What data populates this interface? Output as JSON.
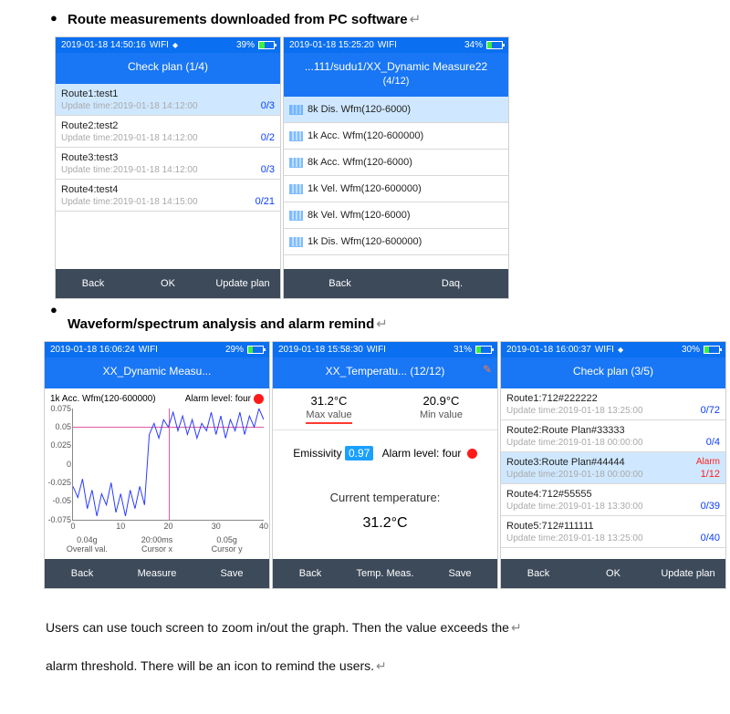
{
  "headings": {
    "h1": "Route measurements downloaded from PC software",
    "h2": "Waveform/spectrum analysis and alarm remind"
  },
  "bodytext": {
    "p1": "Users can use touch screen to zoom in/out the graph. Then the value exceeds the",
    "p2": "alarm threshold. There will be an icon to remind the users."
  },
  "phoneA": {
    "status": {
      "time": "2019-01-18 14:50:16",
      "wifi": "WIFI",
      "batt_pct": "39%",
      "batt_fill": 39
    },
    "title": "Check plan (1/4)",
    "items": [
      {
        "name": "Route1:test1",
        "upd": "Update time:2019-01-18 14:12:00",
        "cnt": "0/3",
        "sel": true
      },
      {
        "name": "Route2:test2",
        "upd": "Update time:2019-01-18 14:12:00",
        "cnt": "0/2"
      },
      {
        "name": "Route3:test3",
        "upd": "Update time:2019-01-18 14:12:00",
        "cnt": "0/3"
      },
      {
        "name": "Route4:test4",
        "upd": "Update time:2019-01-18 14:15:00",
        "cnt": "0/21"
      }
    ],
    "footer": [
      "Back",
      "OK",
      "Update plan"
    ]
  },
  "phoneB": {
    "status": {
      "time": "2019-01-18 15:25:20",
      "wifi": "WIFI",
      "batt_pct": "34%",
      "batt_fill": 34
    },
    "title_l1": "...111/sudu1/XX_Dynamic Measure22",
    "title_l2": "(4/12)",
    "items": [
      {
        "name": "8k Dis. Wfm(120-6000)",
        "sel": true
      },
      {
        "name": "1k Acc. Wfm(120-600000)"
      },
      {
        "name": "8k Acc. Wfm(120-6000)"
      },
      {
        "name": "1k Vel. Wfm(120-600000)"
      },
      {
        "name": "8k Vel. Wfm(120-6000)"
      },
      {
        "name": "1k Dis. Wfm(120-600000)"
      }
    ],
    "footer": [
      "Back",
      "Daq."
    ]
  },
  "phoneC": {
    "status": {
      "time": "2019-01-18 16:06:24",
      "wifi": "WIFI",
      "batt_pct": "29%",
      "batt_fill": 29
    },
    "title": "XX_Dynamic Measu...",
    "chart": {
      "type": "line",
      "series_label": "1k Acc. Wfm(120-600000)",
      "alarm_label": "Alarm level: four",
      "line_color": "#2a3cff",
      "cursor_color": "#e05aa0",
      "yticks": [
        0.075,
        0.05,
        0.025,
        0,
        -0.025,
        -0.05,
        -0.075
      ],
      "xticks": [
        0,
        10,
        20,
        30,
        40
      ],
      "cursor_x": 20,
      "cursor_y": 0.05,
      "overall": {
        "v": "0.04g",
        "l": "Overall val."
      },
      "cx": {
        "v": "20:00ms",
        "l": "Cursor x"
      },
      "cy": {
        "v": "0.05g",
        "l": "Cursor y"
      },
      "points": [
        [
          0,
          -0.03
        ],
        [
          1,
          -0.045
        ],
        [
          2,
          -0.02
        ],
        [
          3,
          -0.06
        ],
        [
          4,
          -0.035
        ],
        [
          5,
          -0.07
        ],
        [
          6,
          -0.04
        ],
        [
          7,
          -0.055
        ],
        [
          8,
          -0.025
        ],
        [
          9,
          -0.065
        ],
        [
          10,
          -0.04
        ],
        [
          11,
          -0.07
        ],
        [
          12,
          -0.035
        ],
        [
          13,
          -0.06
        ],
        [
          14,
          -0.03
        ],
        [
          15,
          -0.055
        ],
        [
          16,
          0.04
        ],
        [
          17,
          0.055
        ],
        [
          18,
          0.035
        ],
        [
          19,
          0.06
        ],
        [
          20,
          0.05
        ],
        [
          21,
          0.07
        ],
        [
          22,
          0.045
        ],
        [
          23,
          0.065
        ],
        [
          24,
          0.04
        ],
        [
          25,
          0.06
        ],
        [
          26,
          0.035
        ],
        [
          27,
          0.055
        ],
        [
          28,
          0.045
        ],
        [
          29,
          0.07
        ],
        [
          30,
          0.04
        ],
        [
          31,
          0.065
        ],
        [
          32,
          0.035
        ],
        [
          33,
          0.06
        ],
        [
          34,
          0.045
        ],
        [
          35,
          0.07
        ],
        [
          36,
          0.04
        ],
        [
          37,
          0.065
        ],
        [
          38,
          0.05
        ],
        [
          39,
          0.075
        ],
        [
          40,
          0.06
        ]
      ]
    },
    "footer": [
      "Back",
      "Measure",
      "Save"
    ]
  },
  "phoneD": {
    "status": {
      "time": "2019-01-18 15:58:30",
      "wifi": "WIFI",
      "batt_pct": "31%",
      "batt_fill": 31
    },
    "title": "XX_Temperatu... (12/12)",
    "edit_icon": "✎",
    "max": {
      "v": "31.2°C",
      "l": "Max value"
    },
    "min": {
      "v": "20.9°C",
      "l": "Min value"
    },
    "emiss_label": "Emissivity",
    "emiss_val": "0.97",
    "alarm_label": "Alarm level: four",
    "cur_label": "Current temperature:",
    "cur_val": "31.2°C",
    "footer": [
      "Back",
      "Temp. Meas.",
      "Save"
    ]
  },
  "phoneE": {
    "status": {
      "time": "2019-01-18 16:00:37",
      "wifi": "WIFI",
      "batt_pct": "30%",
      "batt_fill": 30
    },
    "title": "Check plan (3/5)",
    "items": [
      {
        "name": "Route1:712#222222",
        "upd": "Update time:2019-01-18 13:25:00",
        "cnt": "0/72"
      },
      {
        "name": "Route2:Route Plan#33333",
        "upd": "Update time:2019-01-18 00:00:00",
        "cnt": "0/4"
      },
      {
        "name": "Route3:Route Plan#44444",
        "upd": "Update time:2019-01-18 00:00:00",
        "cnt": "1/12",
        "sel": true,
        "alarm": "Alarm",
        "cnt_red": true
      },
      {
        "name": "Route4:712#55555",
        "upd": "Update time:2019-01-18 13:30:00",
        "cnt": "0/39"
      },
      {
        "name": "Route5:712#111111",
        "upd": "Update time:2019-01-18 13:25:00",
        "cnt": "0/40"
      }
    ],
    "footer": [
      "Back",
      "OK",
      "Update plan"
    ]
  }
}
